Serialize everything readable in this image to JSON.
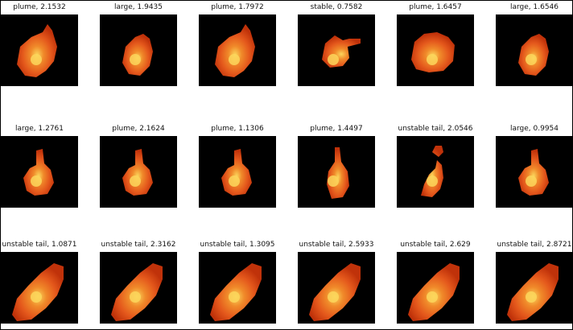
{
  "palette": {
    "background": "#000000",
    "outer": "#c0320a",
    "mid": "#e4581c",
    "warm": "#f08a2a",
    "core": "#fbd65c"
  },
  "rows": [
    [
      {
        "label": "plume, 2.1532",
        "shape": "blob-tilted"
      },
      {
        "label": "large, 1.9435",
        "shape": "blob-round"
      },
      {
        "label": "plume, 1.7972",
        "shape": "blob-tilted"
      },
      {
        "label": "stable, 0.7582",
        "shape": "blob-arm"
      },
      {
        "label": "plume, 1.6457",
        "shape": "blob-wide"
      },
      {
        "label": "large, 1.6546",
        "shape": "blob-round"
      }
    ],
    [
      {
        "label": "large, 1.2761",
        "shape": "blob-neck"
      },
      {
        "label": "plume, 2.1624",
        "shape": "blob-neck"
      },
      {
        "label": "plume, 1.1306",
        "shape": "blob-neck"
      },
      {
        "label": "plume, 1.4497",
        "shape": "blob-drop"
      },
      {
        "label": "unstable tail, 2.0546",
        "shape": "blob-split"
      },
      {
        "label": "large, 0.9954",
        "shape": "blob-neck"
      }
    ],
    [
      {
        "label": "unstable tail, 1.0871",
        "shape": "blob-diag"
      },
      {
        "label": "unstable tail, 2.3162",
        "shape": "blob-diag"
      },
      {
        "label": "unstable tail, 1.3095",
        "shape": "blob-diag"
      },
      {
        "label": "unstable tail, 2.5933",
        "shape": "blob-diag"
      },
      {
        "label": "unstable tail, 2.629",
        "shape": "blob-diag"
      },
      {
        "label": "unstable tail, 2.8721",
        "shape": "blob-diag"
      }
    ]
  ]
}
